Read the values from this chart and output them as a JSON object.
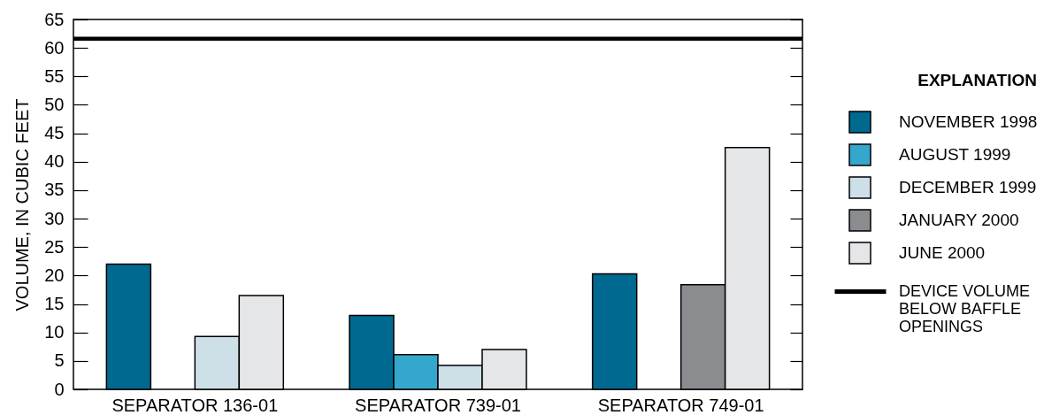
{
  "chart_data": {
    "type": "bar",
    "ylabel": "VOLUME, IN CUBIC FEET",
    "legend_title": "EXPLANATION",
    "categories": [
      "SEPARATOR 136-01",
      "SEPARATOR 739-01",
      "SEPARATOR 749-01"
    ],
    "series": [
      {
        "name": "NOVEMBER 1998",
        "color": "#006990",
        "values": [
          22.0,
          13.0,
          20.3
        ]
      },
      {
        "name": "AUGUST 1999",
        "color": "#35a6cc",
        "values": [
          null,
          6.1,
          null
        ]
      },
      {
        "name": "DECEMBER 1999",
        "color": "#cddfe7",
        "values": [
          9.3,
          4.2,
          null
        ]
      },
      {
        "name": "JANUARY 2000",
        "color": "#8b8c90",
        "values": [
          null,
          null,
          18.4
        ]
      },
      {
        "name": "JUNE 2000",
        "color": "#e5e6e8",
        "values": [
          16.5,
          7.0,
          42.5
        ]
      }
    ],
    "ylim": [
      0,
      65
    ],
    "yticks": [
      0,
      5,
      10,
      15,
      20,
      25,
      30,
      35,
      40,
      45,
      50,
      55,
      60,
      65
    ],
    "ref_lines": [
      {
        "axis": "y",
        "value": 61.6,
        "label": "DEVICE VOLUME BELOW BAFFLE OPENINGS",
        "color": "#000000"
      }
    ],
    "legend": "right"
  }
}
